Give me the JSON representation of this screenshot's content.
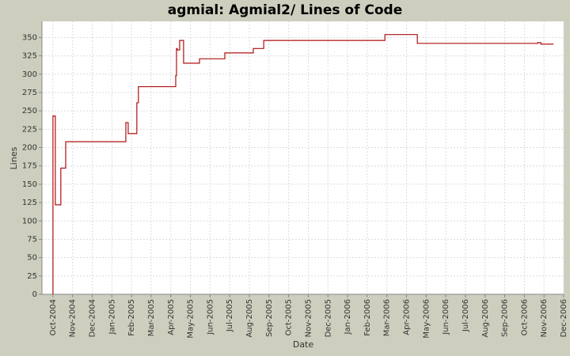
{
  "chart_data": {
    "type": "step",
    "title": "agmial: Agmial2/ Lines of Code",
    "x_label": "Date",
    "y_label": "Lines",
    "x": [
      0,
      0,
      0.12,
      0.4,
      0.65,
      3.71,
      3.83,
      4.27,
      4.35,
      6.25,
      6.29,
      6.33,
      6.45,
      6.65,
      6.67,
      7.46,
      8.75,
      10.2,
      10.73,
      16.9,
      18.55,
      24.68,
      24.84,
      25.48
    ],
    "series": [
      {
        "name": "Lines",
        "color": "#b01010",
        "values": [
          0,
          243,
          122,
          172,
          208,
          234,
          219,
          261,
          283,
          298,
          335,
          333,
          346,
          315,
          315,
          321,
          329,
          335,
          346,
          354,
          342,
          343,
          341,
          341
        ]
      }
    ],
    "xlim": [
      -0.56,
      26.0
    ],
    "ylim": [
      0,
      372
    ],
    "xticks": [
      {
        "value": 0,
        "label": "Oct-2004"
      },
      {
        "value": 1,
        "label": "Nov-2004"
      },
      {
        "value": 2,
        "label": "Dec-2004"
      },
      {
        "value": 3,
        "label": "Jan-2005"
      },
      {
        "value": 4,
        "label": "Feb-2005"
      },
      {
        "value": 5,
        "label": "Mar-2005"
      },
      {
        "value": 6,
        "label": "Apr-2005"
      },
      {
        "value": 7,
        "label": "May-2005"
      },
      {
        "value": 8,
        "label": "Jun-2005"
      },
      {
        "value": 9,
        "label": "Jul-2005"
      },
      {
        "value": 10,
        "label": "Aug-2005"
      },
      {
        "value": 11,
        "label": "Sep-2005"
      },
      {
        "value": 12,
        "label": "Oct-2005"
      },
      {
        "value": 13,
        "label": "Nov-2005"
      },
      {
        "value": 14,
        "label": "Dec-2005"
      },
      {
        "value": 15,
        "label": "Jan-2006"
      },
      {
        "value": 16,
        "label": "Feb-2006"
      },
      {
        "value": 17,
        "label": "Mar-2006"
      },
      {
        "value": 18,
        "label": "Apr-2006"
      },
      {
        "value": 19,
        "label": "May-2006"
      },
      {
        "value": 20,
        "label": "Jun-2006"
      },
      {
        "value": 21,
        "label": "Jul-2006"
      },
      {
        "value": 22,
        "label": "Aug-2006"
      },
      {
        "value": 23,
        "label": "Sep-2006"
      },
      {
        "value": 24,
        "label": "Oct-2006"
      },
      {
        "value": 25,
        "label": "Nov-2006"
      },
      {
        "value": 26,
        "label": "Dec-2006"
      }
    ],
    "yticks": [
      0,
      25,
      50,
      75,
      100,
      125,
      150,
      175,
      200,
      225,
      250,
      275,
      300,
      325,
      350
    ],
    "grid": true
  }
}
